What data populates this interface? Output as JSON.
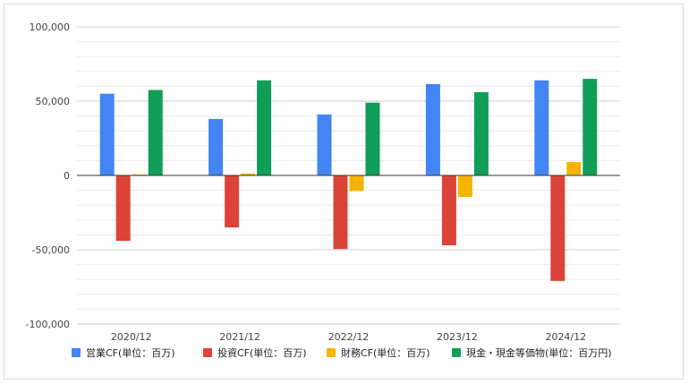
{
  "chart_data": {
    "type": "bar",
    "title": "",
    "xlabel": "",
    "ylabel": "",
    "categories": [
      "2020/12",
      "2021/12",
      "2022/12",
      "2023/12",
      "2024/12"
    ],
    "ylim": [
      -100000,
      100000
    ],
    "yticks": [
      100000,
      50000,
      0,
      -50000,
      -100000
    ],
    "ytick_labels": [
      "100,000",
      "50,000",
      "0",
      "-50,000",
      "-100,000"
    ],
    "grid": true,
    "legend_position": "bottom",
    "series": [
      {
        "name": "営業CF(単位：百万)",
        "color": "#4285f4",
        "values": [
          55000,
          38000,
          41000,
          61500,
          64000
        ]
      },
      {
        "name": "投資CF(単位：百万)",
        "color": "#db4437",
        "values": [
          -44000,
          -35000,
          -49500,
          -47000,
          -71000
        ]
      },
      {
        "name": "財務CF(単位：百万)",
        "color": "#f4b400",
        "values": [
          700,
          1200,
          -10500,
          -14500,
          9000
        ]
      },
      {
        "name": "現金・現金等価物(単位：百万円)",
        "color": "#0f9d58",
        "values": [
          57500,
          64000,
          49000,
          56000,
          65000
        ]
      }
    ]
  }
}
